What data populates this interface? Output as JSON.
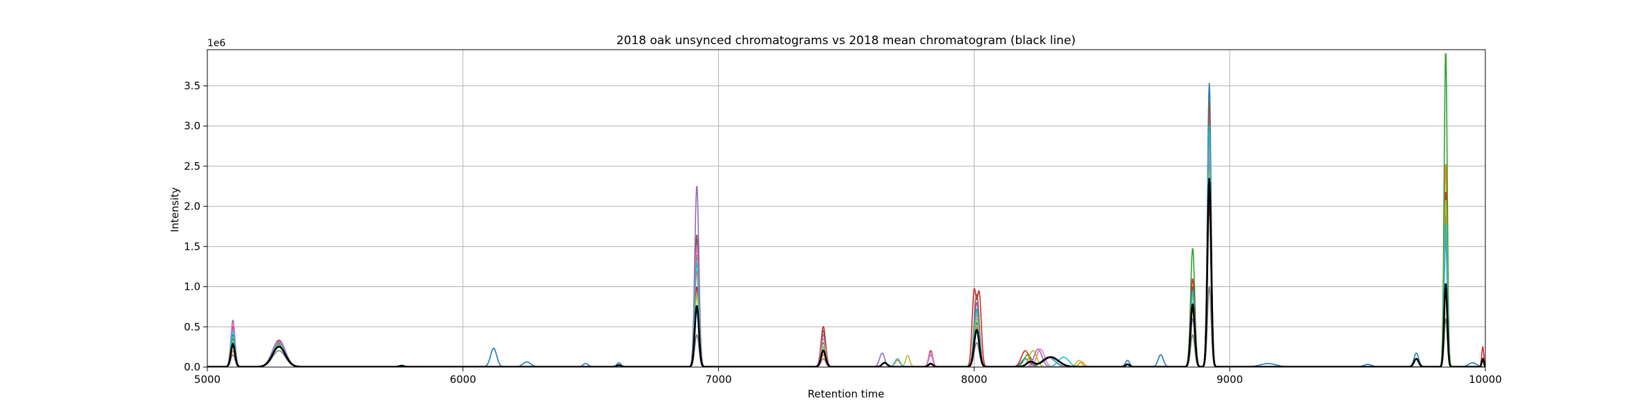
{
  "chart_data": {
    "type": "line",
    "title": "2018 oak unsynced chromatograms vs 2018 mean chromatogram (black line)",
    "xlabel": "Retention time",
    "ylabel": "Intensity",
    "y_offset_text": "1e6",
    "xlim": [
      5000,
      10000
    ],
    "ylim": [
      0,
      3.95
    ],
    "x_ticks": [
      5000,
      6000,
      7000,
      8000,
      9000,
      10000
    ],
    "x_tick_labels": [
      "5000",
      "6000",
      "7000",
      "8000",
      "9000",
      "10000"
    ],
    "y_ticks": [
      0,
      0.5,
      1.0,
      1.5,
      2.0,
      2.5,
      3.0,
      3.5
    ],
    "y_tick_labels": [
      "0.0",
      "0.5",
      "1.0",
      "1.5",
      "2.0",
      "2.5",
      "3.0",
      "3.5"
    ],
    "grid": true,
    "series": [
      {
        "color": "#1f77b4",
        "peaks": [
          [
            5100,
            0.4,
            8
          ],
          [
            5280,
            0.28,
            25
          ],
          [
            5760,
            0.02,
            10
          ],
          [
            6120,
            0.23,
            12
          ],
          [
            6250,
            0.06,
            15
          ],
          [
            6480,
            0.04,
            10
          ],
          [
            6610,
            0.05,
            8
          ],
          [
            6915,
            1.62,
            8
          ],
          [
            7410,
            0.2,
            9
          ],
          [
            7650,
            0.05,
            10
          ],
          [
            7830,
            0.04,
            8
          ],
          [
            8010,
            0.55,
            10
          ],
          [
            8200,
            0.1,
            15
          ],
          [
            8290,
            0.12,
            25
          ],
          [
            8600,
            0.08,
            8
          ],
          [
            8730,
            0.15,
            10
          ],
          [
            8855,
            0.9,
            8
          ],
          [
            8920,
            3.53,
            7
          ],
          [
            9150,
            0.04,
            30
          ],
          [
            9540,
            0.03,
            15
          ],
          [
            9730,
            0.17,
            9
          ],
          [
            9845,
            1.6,
            6
          ],
          [
            9950,
            0.05,
            15
          ]
        ]
      },
      {
        "color": "#ff7f0e",
        "peaks": [
          [
            5100,
            0.2,
            8
          ],
          [
            5280,
            0.3,
            25
          ],
          [
            6915,
            1.2,
            8
          ],
          [
            7410,
            0.15,
            9
          ],
          [
            7700,
            0.08,
            10
          ],
          [
            8010,
            0.5,
            10
          ],
          [
            8230,
            0.2,
            15
          ],
          [
            8420,
            0.06,
            10
          ],
          [
            8855,
            0.7,
            8
          ],
          [
            8920,
            3.1,
            7
          ],
          [
            9845,
            2.55,
            6
          ]
        ]
      },
      {
        "color": "#2ca02c",
        "peaks": [
          [
            5100,
            0.35,
            8
          ],
          [
            5280,
            0.25,
            25
          ],
          [
            6915,
            1.4,
            8
          ],
          [
            7410,
            0.3,
            9
          ],
          [
            7650,
            0.05,
            10
          ],
          [
            8010,
            0.7,
            10
          ],
          [
            8210,
            0.15,
            15
          ],
          [
            8855,
            1.48,
            8
          ],
          [
            8920,
            2.6,
            7
          ],
          [
            9845,
            3.95,
            6
          ]
        ]
      },
      {
        "color": "#d62728",
        "peaks": [
          [
            5100,
            0.5,
            8
          ],
          [
            5280,
            0.33,
            25
          ],
          [
            6915,
            1.0,
            8
          ],
          [
            7410,
            0.5,
            9
          ],
          [
            7830,
            0.2,
            8
          ],
          [
            8000,
            0.93,
            8
          ],
          [
            8020,
            0.9,
            8
          ],
          [
            8200,
            0.2,
            15
          ],
          [
            8855,
            1.1,
            8
          ],
          [
            8920,
            2.0,
            7
          ],
          [
            9845,
            2.2,
            6
          ],
          [
            9990,
            0.25,
            4
          ]
        ]
      },
      {
        "color": "#9467bd",
        "peaks": [
          [
            5100,
            0.58,
            8
          ],
          [
            5280,
            0.32,
            25
          ],
          [
            6915,
            2.26,
            8
          ],
          [
            7410,
            0.4,
            9
          ],
          [
            7640,
            0.17,
            10
          ],
          [
            7830,
            0.15,
            8
          ],
          [
            8010,
            0.8,
            10
          ],
          [
            8250,
            0.22,
            15
          ],
          [
            8855,
            0.6,
            8
          ],
          [
            8920,
            2.9,
            7
          ],
          [
            9845,
            2.0,
            6
          ]
        ]
      },
      {
        "color": "#8c564b",
        "peaks": [
          [
            5100,
            0.3,
            8
          ],
          [
            5280,
            0.3,
            25
          ],
          [
            6915,
            1.65,
            8
          ],
          [
            7410,
            0.45,
            9
          ],
          [
            8010,
            0.9,
            10
          ],
          [
            8855,
            1.0,
            8
          ],
          [
            8920,
            3.3,
            7
          ],
          [
            9845,
            1.9,
            6
          ]
        ]
      },
      {
        "color": "#e377c2",
        "peaks": [
          [
            5100,
            0.55,
            8
          ],
          [
            5280,
            0.31,
            25
          ],
          [
            6915,
            1.5,
            8
          ],
          [
            7410,
            0.35,
            9
          ],
          [
            7830,
            0.18,
            8
          ],
          [
            8010,
            0.65,
            10
          ],
          [
            8260,
            0.22,
            15
          ],
          [
            8855,
            0.8,
            8
          ],
          [
            8920,
            2.7,
            7
          ],
          [
            9845,
            1.7,
            6
          ]
        ]
      },
      {
        "color": "#bcbd22",
        "peaks": [
          [
            5100,
            0.25,
            8
          ],
          [
            5280,
            0.27,
            25
          ],
          [
            6915,
            0.9,
            8
          ],
          [
            7410,
            0.25,
            9
          ],
          [
            7740,
            0.14,
            8
          ],
          [
            8010,
            0.6,
            10
          ],
          [
            8230,
            0.2,
            15
          ],
          [
            8410,
            0.08,
            10
          ],
          [
            8855,
            0.9,
            8
          ],
          [
            8920,
            2.4,
            7
          ],
          [
            9845,
            2.1,
            6
          ]
        ]
      },
      {
        "color": "#17becf",
        "peaks": [
          [
            5100,
            0.45,
            8
          ],
          [
            5280,
            0.29,
            25
          ],
          [
            6915,
            1.3,
            8
          ],
          [
            7410,
            0.22,
            9
          ],
          [
            7700,
            0.1,
            10
          ],
          [
            8010,
            0.72,
            10
          ],
          [
            8350,
            0.12,
            20
          ],
          [
            8855,
            0.95,
            8
          ],
          [
            8920,
            3.0,
            7
          ],
          [
            9845,
            1.8,
            6
          ]
        ]
      },
      {
        "color": "#7f7f7f",
        "peaks": [
          [
            5100,
            0.15,
            8
          ],
          [
            5280,
            0.2,
            25
          ],
          [
            6915,
            0.4,
            8
          ],
          [
            7410,
            0.1,
            9
          ],
          [
            8010,
            0.3,
            10
          ],
          [
            8855,
            0.4,
            8
          ],
          [
            8920,
            1.0,
            7
          ],
          [
            9845,
            0.6,
            6
          ]
        ]
      },
      {
        "color": "#000000",
        "mean": true,
        "peaks": [
          [
            5100,
            0.28,
            8
          ],
          [
            5280,
            0.25,
            25
          ],
          [
            5760,
            0.01,
            10
          ],
          [
            6610,
            0.02,
            8
          ],
          [
            6915,
            0.76,
            8
          ],
          [
            7410,
            0.2,
            9
          ],
          [
            7650,
            0.05,
            10
          ],
          [
            7830,
            0.04,
            8
          ],
          [
            8010,
            0.46,
            10
          ],
          [
            8220,
            0.06,
            15
          ],
          [
            8300,
            0.12,
            30
          ],
          [
            8600,
            0.03,
            8
          ],
          [
            8855,
            0.78,
            8
          ],
          [
            8920,
            2.34,
            7
          ],
          [
            9730,
            0.1,
            9
          ],
          [
            9845,
            1.04,
            6
          ],
          [
            9990,
            0.1,
            4
          ]
        ]
      }
    ]
  }
}
